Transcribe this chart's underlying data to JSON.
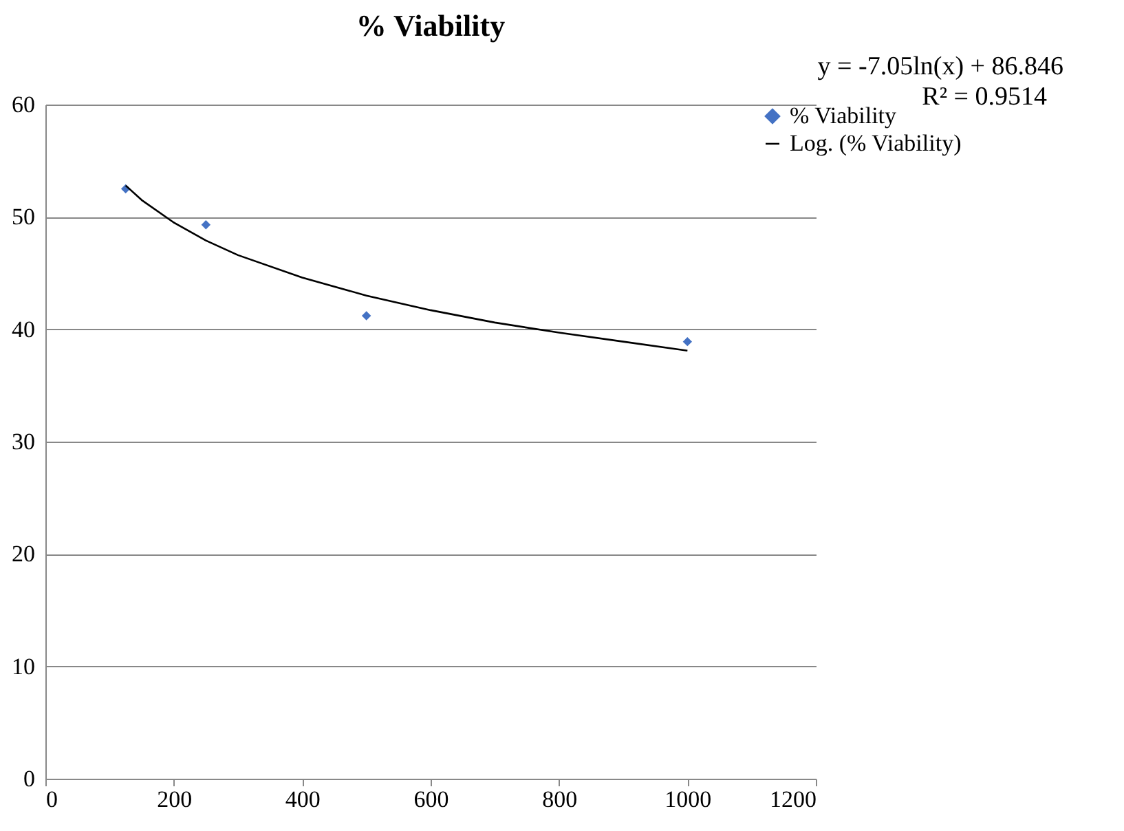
{
  "chart_data": {
    "type": "scatter",
    "title": "% Viability",
    "annotations": [
      "y = -7.05ln(x) + 86.846",
      "R² = 0.9514"
    ],
    "series": [
      {
        "name": "% Viability",
        "color": "#4472c4",
        "marker": "diamond",
        "x": [
          125,
          250,
          500,
          1000
        ],
        "values": [
          52.5,
          49.3,
          41.2,
          38.9
        ]
      },
      {
        "name": "Log. (% Viability)",
        "type": "line",
        "color": "#000000",
        "marker": "none",
        "line_style": "solid",
        "x": [
          125,
          150,
          200,
          250,
          300,
          400,
          500,
          600,
          700,
          800,
          900,
          1000
        ],
        "values": [
          52.8,
          51.5,
          49.5,
          47.9,
          46.6,
          44.6,
          43.0,
          41.7,
          40.6,
          39.7,
          38.9,
          38.1
        ]
      }
    ],
    "xlim": [
      0,
      1200
    ],
    "xticks": [
      0,
      200,
      400,
      600,
      800,
      1000,
      1200
    ],
    "ylim": [
      0,
      60
    ],
    "yticks": [
      0,
      10,
      20,
      30,
      40,
      50,
      60
    ],
    "grid": "y",
    "legend": "right"
  }
}
